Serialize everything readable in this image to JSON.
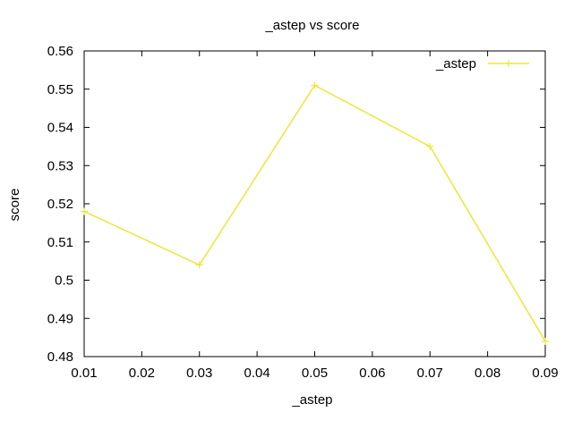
{
  "chart_data": {
    "type": "line",
    "title": "_astep vs score",
    "xlabel": "_astep",
    "ylabel": "score",
    "xlim": [
      0.01,
      0.09
    ],
    "ylim": [
      0.48,
      0.56
    ],
    "xticks": [
      0.01,
      0.02,
      0.03,
      0.04,
      0.05,
      0.06,
      0.07,
      0.08,
      0.09
    ],
    "yticks": [
      0.48,
      0.49,
      0.5,
      0.51,
      0.52,
      0.53,
      0.54,
      0.55,
      0.56
    ],
    "xtick_labels": [
      "0.01",
      "0.02",
      "0.03",
      "0.04",
      "0.05",
      "0.06",
      "0.07",
      "0.08",
      "0.09"
    ],
    "ytick_labels": [
      "0.48",
      "0.49",
      "0.5",
      "0.51",
      "0.52",
      "0.53",
      "0.54",
      "0.55",
      "0.56"
    ],
    "grid": false,
    "legend_position": "top-right",
    "series": [
      {
        "name": "_astep",
        "color": "#e8e83a",
        "marker": "plus",
        "x": [
          0.01,
          0.03,
          0.05,
          0.07,
          0.09
        ],
        "y": [
          0.518,
          0.504,
          0.551,
          0.535,
          0.484
        ]
      }
    ]
  }
}
